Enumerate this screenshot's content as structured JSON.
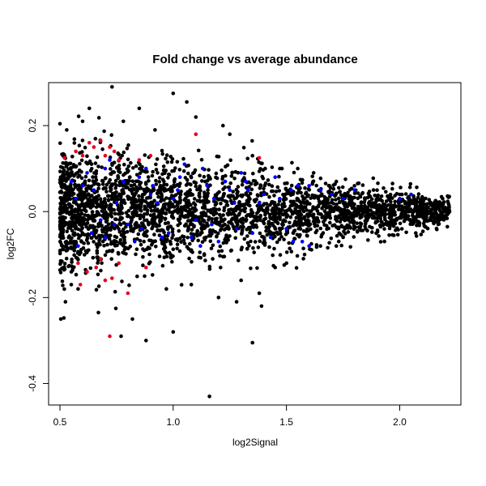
{
  "chart_data": {
    "type": "scatter",
    "title": "Fold change vs average abundance",
    "xlabel": "log2Signal",
    "ylabel": "log2FC",
    "xlim": [
      0.45,
      2.27
    ],
    "ylim": [
      -0.45,
      0.3
    ],
    "x_ticks": [
      0.5,
      1.0,
      1.5,
      2.0
    ],
    "x_tick_labels": [
      "0.5",
      "1.0",
      "1.5",
      "2.0"
    ],
    "y_ticks": [
      -0.4,
      -0.2,
      0.0,
      0.2
    ],
    "y_tick_labels": [
      "-0.4",
      "-0.2",
      "0.0",
      "0.2"
    ],
    "grid": false,
    "legend": "none",
    "series": [
      {
        "color": "#000000",
        "points": [
          [
            0.73,
            0.29
          ],
          [
            1.0,
            0.275
          ],
          [
            1.06,
            0.255
          ],
          [
            0.85,
            0.24
          ],
          [
            0.78,
            0.21
          ],
          [
            0.63,
            0.24
          ],
          [
            1.25,
            0.18
          ],
          [
            1.22,
            0.2
          ],
          [
            0.92,
            0.19
          ],
          [
            1.35,
            0.13
          ],
          [
            1.48,
            0.1
          ],
          [
            1.55,
            0.1
          ],
          [
            1.62,
            0.09
          ],
          [
            1.72,
            0.07
          ],
          [
            1.8,
            0.06
          ],
          [
            1.9,
            0.05
          ],
          [
            2.0,
            0.04
          ],
          [
            2.1,
            0.03
          ],
          [
            2.17,
            0.01
          ],
          [
            2.22,
            0.0
          ],
          [
            2.15,
            -0.01
          ],
          [
            1.95,
            -0.03
          ],
          [
            1.85,
            -0.04
          ],
          [
            1.75,
            -0.06
          ],
          [
            1.65,
            -0.08
          ],
          [
            1.58,
            -0.1
          ],
          [
            1.5,
            -0.12
          ],
          [
            1.45,
            -0.13
          ],
          [
            1.38,
            -0.19
          ],
          [
            1.39,
            -0.22
          ],
          [
            1.35,
            -0.305
          ],
          [
            1.16,
            -0.43
          ],
          [
            1.0,
            -0.28
          ],
          [
            0.88,
            -0.3
          ],
          [
            0.82,
            -0.25
          ],
          [
            0.77,
            -0.29
          ],
          [
            0.67,
            -0.235
          ],
          [
            1.2,
            -0.2
          ],
          [
            1.28,
            -0.21
          ],
          [
            1.08,
            -0.17
          ],
          [
            0.97,
            -0.18
          ],
          [
            1.3,
            -0.16
          ],
          [
            0.58,
            -0.18
          ],
          [
            0.55,
            -0.17
          ],
          [
            0.53,
            0.19
          ],
          [
            0.6,
            0.21
          ],
          [
            1.1,
            0.22
          ]
        ],
        "cloud_count": 3000
      },
      {
        "color": "#0000ff",
        "points": [
          [
            0.55,
            0.07
          ],
          [
            0.6,
            0.06
          ],
          [
            0.65,
            0.05
          ],
          [
            0.7,
            0.1
          ],
          [
            0.75,
            0.02
          ],
          [
            0.8,
            -0.03
          ],
          [
            0.85,
            0.08
          ],
          [
            0.9,
            0.04
          ],
          [
            0.95,
            -0.06
          ],
          [
            1.0,
            0.03
          ],
          [
            1.05,
            0.11
          ],
          [
            1.1,
            -0.02
          ],
          [
            1.15,
            0.06
          ],
          [
            1.2,
            -0.07
          ],
          [
            1.25,
            0.05
          ],
          [
            1.3,
            0.09
          ],
          [
            1.35,
            -0.05
          ],
          [
            1.4,
            0.04
          ],
          [
            1.45,
            0.08
          ],
          [
            1.5,
            -0.04
          ],
          [
            1.55,
            0.06
          ],
          [
            1.6,
            -0.08
          ],
          [
            1.65,
            0.05
          ],
          [
            1.7,
            0.04
          ],
          [
            1.75,
            0.03
          ],
          [
            1.8,
            0.05
          ],
          [
            2.0,
            0.03
          ],
          [
            2.05,
            0.04
          ],
          [
            0.58,
            -0.08
          ],
          [
            0.62,
            0.09
          ],
          [
            0.68,
            -0.02
          ],
          [
            0.72,
            0.12
          ],
          [
            0.78,
            0.07
          ],
          [
            0.83,
            -0.07
          ],
          [
            0.88,
            0.1
          ],
          [
            0.93,
            0.02
          ],
          [
            0.98,
            -0.05
          ],
          [
            1.03,
            0.08
          ],
          [
            1.08,
            -0.06
          ],
          [
            1.13,
            0.1
          ],
          [
            1.18,
            0.03
          ],
          [
            1.23,
            0.07
          ],
          [
            1.28,
            -0.04
          ],
          [
            1.33,
            0.05
          ],
          [
            1.38,
            0.02
          ],
          [
            1.43,
            -0.06
          ],
          [
            1.53,
            -0.07
          ],
          [
            1.6,
            0.06
          ],
          [
            0.64,
            -0.05
          ],
          [
            0.74,
            -0.03
          ],
          [
            0.86,
            -0.04
          ],
          [
            1.02,
            0.05
          ],
          [
            1.17,
            -0.03
          ],
          [
            1.27,
            0.02
          ],
          [
            1.47,
            0.03
          ],
          [
            1.57,
            -0.07
          ],
          [
            0.57,
            0.03
          ],
          [
            0.7,
            -0.06
          ],
          [
            0.91,
            0.06
          ],
          [
            1.12,
            -0.08
          ],
          [
            1.32,
            0.07
          ],
          [
            1.52,
            0.05
          ]
        ]
      },
      {
        "color": "#e8001c",
        "points": [
          [
            0.52,
            0.125
          ],
          [
            0.57,
            0.14
          ],
          [
            0.6,
            0.13
          ],
          [
            0.63,
            0.16
          ],
          [
            0.65,
            0.15
          ],
          [
            0.68,
            0.165
          ],
          [
            0.7,
            0.13
          ],
          [
            0.72,
            0.15
          ],
          [
            0.74,
            0.14
          ],
          [
            0.76,
            0.12
          ],
          [
            0.85,
            0.12
          ],
          [
            0.9,
            0.13
          ],
          [
            1.1,
            0.18
          ],
          [
            1.38,
            0.125
          ],
          [
            0.58,
            -0.12
          ],
          [
            0.62,
            -0.14
          ],
          [
            0.66,
            -0.13
          ],
          [
            0.7,
            -0.16
          ],
          [
            0.73,
            -0.155
          ],
          [
            0.76,
            -0.12
          ],
          [
            0.8,
            -0.19
          ],
          [
            0.88,
            -0.13
          ],
          [
            0.68,
            -0.11
          ],
          [
            0.59,
            -0.17
          ],
          [
            0.72,
            -0.29
          ]
        ]
      }
    ]
  }
}
